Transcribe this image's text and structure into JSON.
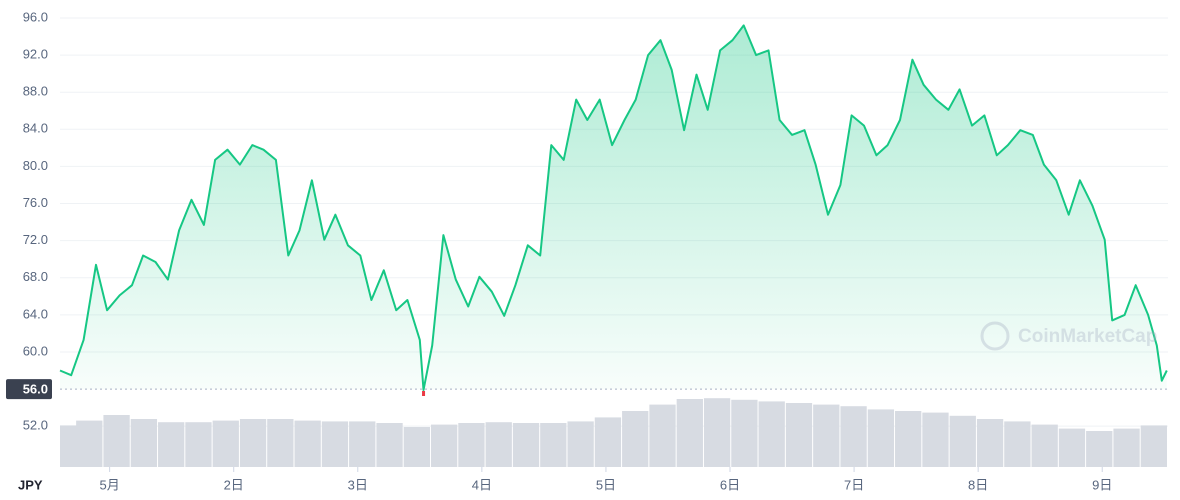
{
  "chart_data": {
    "type": "line",
    "currency": "JPY",
    "watermark": "CoinMarketCap",
    "x": [
      0.6,
      0.69,
      0.79,
      0.89,
      0.98,
      1.08,
      1.18,
      1.27,
      1.37,
      1.47,
      1.56,
      1.66,
      1.76,
      1.85,
      1.95,
      2.05,
      2.15,
      2.24,
      2.34,
      2.44,
      2.53,
      2.63,
      2.73,
      2.82,
      2.92,
      3.02,
      3.11,
      3.21,
      3.31,
      3.4,
      3.5,
      3.53,
      3.6,
      3.69,
      3.79,
      3.89,
      3.98,
      4.08,
      4.18,
      4.27,
      4.37,
      4.47,
      4.56,
      4.66,
      4.76,
      4.85,
      4.95,
      5.05,
      5.15,
      5.24,
      5.34,
      5.44,
      5.53,
      5.63,
      5.73,
      5.82,
      5.92,
      6.02,
      6.11,
      6.21,
      6.31,
      6.4,
      6.5,
      6.6,
      6.69,
      6.79,
      6.89,
      6.98,
      7.08,
      7.18,
      7.27,
      7.37,
      7.47,
      7.56,
      7.66,
      7.76,
      7.85,
      7.95,
      8.05,
      8.15,
      8.24,
      8.34,
      8.44,
      8.53,
      8.63,
      8.73,
      8.82,
      8.92,
      9.02,
      9.08,
      9.18,
      9.27,
      9.37,
      9.44,
      9.48,
      9.52
    ],
    "series": [
      {
        "color": "#16c784",
        "low_color": "#ea3943",
        "values": [
          58.0,
          57.5,
          61.3,
          69.4,
          64.5,
          66.1,
          67.2,
          70.4,
          69.7,
          67.8,
          73.1,
          76.4,
          73.7,
          80.7,
          81.8,
          80.2,
          82.3,
          81.8,
          80.7,
          70.4,
          73.1,
          78.5,
          72.1,
          74.8,
          71.5,
          70.4,
          65.6,
          68.8,
          64.5,
          65.6,
          61.3,
          55.9,
          60.7,
          72.6,
          67.8,
          64.9,
          68.1,
          66.5,
          63.9,
          67.2,
          71.5,
          70.4,
          82.3,
          80.7,
          87.2,
          85.0,
          87.2,
          82.3,
          85.0,
          87.2,
          92.0,
          93.6,
          90.4,
          83.9,
          89.9,
          86.1,
          92.5,
          93.6,
          95.2,
          92.0,
          92.5,
          85.0,
          83.4,
          83.9,
          80.2,
          74.8,
          78.0,
          85.5,
          84.4,
          81.2,
          82.3,
          85.0,
          91.5,
          88.8,
          87.2,
          86.1,
          88.3,
          84.4,
          85.5,
          81.2,
          82.3,
          83.9,
          83.4,
          80.2,
          78.5,
          74.8,
          78.5,
          75.8,
          72.1,
          63.4,
          64.0,
          67.2,
          64.0,
          60.7,
          56.9,
          58.0
        ]
      }
    ],
    "volume": {
      "color": "#d7dbe2",
      "lim": [
        0,
        100
      ],
      "x": [
        0.62,
        0.84,
        1.06,
        1.28,
        1.5,
        1.72,
        1.94,
        2.16,
        2.38,
        2.6,
        2.82,
        3.04,
        3.26,
        3.48,
        3.7,
        3.92,
        4.14,
        4.36,
        4.58,
        4.8,
        5.02,
        5.24,
        5.46,
        5.68,
        5.9,
        6.12,
        6.34,
        6.56,
        6.78,
        7.0,
        7.22,
        7.44,
        7.66,
        7.88,
        8.1,
        8.32,
        8.54,
        8.76,
        8.98,
        9.2,
        9.42
      ],
      "values": [
        52,
        58,
        65,
        60,
        56,
        56,
        58,
        60,
        60,
        58,
        57,
        57,
        55,
        50,
        53,
        55,
        56,
        55,
        55,
        57,
        62,
        70,
        78,
        85,
        86,
        84,
        82,
        80,
        78,
        76,
        72,
        70,
        68,
        64,
        60,
        57,
        53,
        48,
        45,
        48,
        52
      ]
    },
    "xlim": [
      0.6,
      9.53
    ],
    "ylim": [
      47.6,
      97
    ],
    "xticks": [
      {
        "value": 1,
        "label": "5月"
      },
      {
        "value": 2,
        "label": "2日"
      },
      {
        "value": 3,
        "label": "3日"
      },
      {
        "value": 4,
        "label": "4日"
      },
      {
        "value": 5,
        "label": "5日"
      },
      {
        "value": 6,
        "label": "6日"
      },
      {
        "value": 7,
        "label": "7日"
      },
      {
        "value": 8,
        "label": "8日"
      },
      {
        "value": 9,
        "label": "9日"
      }
    ],
    "yticks": [
      {
        "value": 52,
        "label": "52.0"
      },
      {
        "value": 60,
        "label": "60.0"
      },
      {
        "value": 64,
        "label": "64.0"
      },
      {
        "value": 68,
        "label": "68.0"
      },
      {
        "value": 72,
        "label": "72.0"
      },
      {
        "value": 76,
        "label": "76.0"
      },
      {
        "value": 80,
        "label": "80.0"
      },
      {
        "value": 84,
        "label": "84.0"
      },
      {
        "value": 88,
        "label": "88.0"
      },
      {
        "value": 92,
        "label": "92.0"
      },
      {
        "value": 96,
        "label": "96.0"
      }
    ],
    "reference_line": {
      "value": 56,
      "label": "56.0"
    },
    "grid": true
  }
}
